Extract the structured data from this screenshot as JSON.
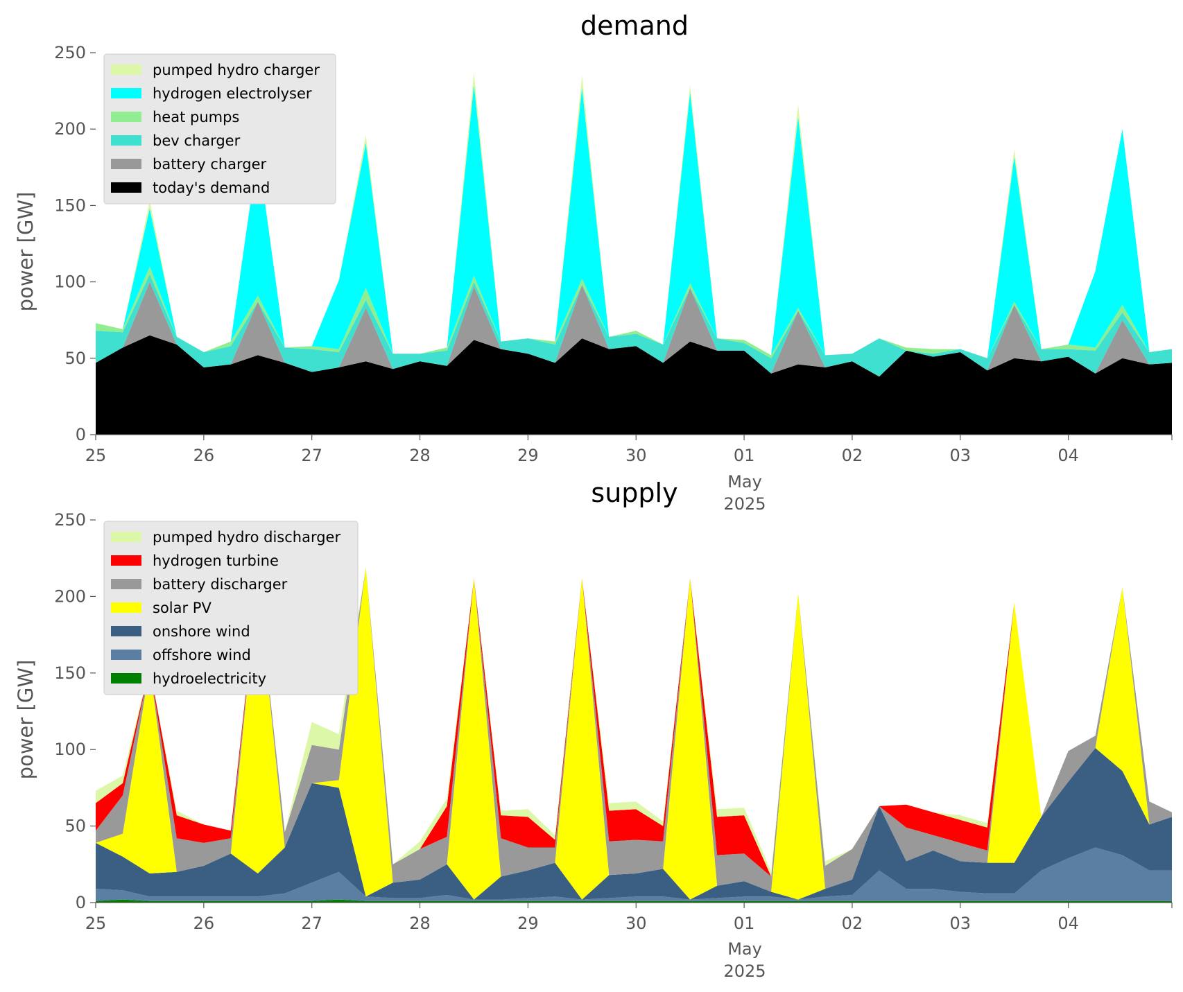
{
  "chart_data": [
    {
      "type": "area",
      "title": "demand",
      "ylabel": "power [GW]",
      "xlabel": "",
      "ylim": [
        0,
        250
      ],
      "yticks": [
        0,
        50,
        100,
        150,
        200,
        250
      ],
      "xlim": [
        "2025-04-25",
        "2025-05-04 23:00"
      ],
      "xtick_labels": [
        "25",
        "26",
        "27",
        "28",
        "29",
        "30",
        "01",
        "02",
        "03",
        "04"
      ],
      "xaxis_note": [
        "May",
        "2025"
      ],
      "legend_position": "top-left",
      "stacked": true,
      "resolution": "hourly samples, interpolated between listed times",
      "x": [
        "04-25 00:00",
        "04-25 06:00",
        "04-25 12:00",
        "04-25 18:00",
        "04-26 00:00",
        "04-26 06:00",
        "04-26 12:00",
        "04-26 18:00",
        "04-27 00:00",
        "04-27 06:00",
        "04-27 12:00",
        "04-27 18:00",
        "04-28 00:00",
        "04-28 06:00",
        "04-28 12:00",
        "04-28 18:00",
        "04-29 00:00",
        "04-29 06:00",
        "04-29 12:00",
        "04-29 18:00",
        "04-30 00:00",
        "04-30 06:00",
        "04-30 12:00",
        "04-30 18:00",
        "05-01 00:00",
        "05-01 06:00",
        "05-01 12:00",
        "05-01 18:00",
        "05-02 00:00",
        "05-02 06:00",
        "05-02 12:00",
        "05-02 18:00",
        "05-03 00:00",
        "05-03 06:00",
        "05-03 12:00",
        "05-03 18:00",
        "05-04 00:00",
        "05-04 06:00",
        "05-04 12:00",
        "05-04 18:00",
        "05-04 23:00"
      ],
      "series": [
        {
          "name": "today's demand",
          "color": "#000000",
          "values": [
            47,
            57,
            65,
            59,
            44,
            46,
            52,
            47,
            41,
            44,
            48,
            43,
            48,
            45,
            62,
            56,
            53,
            47,
            63,
            56,
            58,
            47,
            61,
            55,
            55,
            40,
            46,
            44,
            48,
            38,
            55,
            51,
            54,
            42,
            50,
            48,
            51,
            40,
            50,
            46,
            47
          ]
        },
        {
          "name": "battery charger",
          "color": "#999999",
          "values": [
            0,
            0,
            35,
            0,
            0,
            0,
            35,
            0,
            0,
            0,
            35,
            0,
            0,
            0,
            35,
            0,
            0,
            0,
            35,
            0,
            0,
            0,
            35,
            0,
            0,
            0,
            35,
            0,
            0,
            0,
            0,
            0,
            0,
            0,
            35,
            0,
            0,
            0,
            25,
            0,
            0
          ]
        },
        {
          "name": "bev charger",
          "color": "#40e0d0",
          "values": [
            21,
            10,
            5,
            5,
            10,
            12,
            0,
            10,
            15,
            10,
            5,
            10,
            5,
            10,
            3,
            5,
            10,
            12,
            0,
            8,
            8,
            12,
            0,
            8,
            5,
            10,
            0,
            8,
            5,
            25,
            0,
            2,
            2,
            8,
            0,
            8,
            5,
            15,
            5,
            8,
            9
          ]
        },
        {
          "name": "heat pumps",
          "color": "#90ee90",
          "values": [
            5,
            2,
            5,
            0,
            0,
            3,
            4,
            0,
            2,
            2,
            8,
            0,
            0,
            2,
            4,
            0,
            0,
            2,
            4,
            0,
            2,
            0,
            3,
            0,
            2,
            2,
            2,
            0,
            0,
            0,
            2,
            3,
            0,
            0,
            2,
            0,
            3,
            2,
            5,
            0,
            0
          ]
        },
        {
          "name": "hydrogen electrolyser",
          "color": "#00ffff",
          "values": [
            0,
            0,
            38,
            0,
            0,
            0,
            95,
            0,
            0,
            45,
            95,
            0,
            0,
            0,
            125,
            0,
            0,
            0,
            125,
            0,
            0,
            0,
            125,
            0,
            0,
            0,
            125,
            0,
            0,
            0,
            0,
            0,
            0,
            0,
            95,
            0,
            0,
            50,
            115,
            0,
            0
          ]
        },
        {
          "name": "pumped hydro charger",
          "color": "#ddf7a8",
          "values": [
            0,
            0,
            5,
            0,
            0,
            0,
            0,
            0,
            0,
            0,
            5,
            0,
            0,
            0,
            8,
            0,
            0,
            0,
            8,
            0,
            0,
            0,
            5,
            0,
            0,
            0,
            8,
            0,
            0,
            0,
            0,
            0,
            0,
            0,
            5,
            0,
            0,
            0,
            0,
            0,
            0
          ]
        }
      ]
    },
    {
      "type": "area",
      "title": "supply",
      "ylabel": "power [GW]",
      "xlabel": "",
      "ylim": [
        0,
        250
      ],
      "yticks": [
        0,
        50,
        100,
        150,
        200,
        250
      ],
      "xlim": [
        "2025-04-25",
        "2025-05-04 23:00"
      ],
      "xtick_labels": [
        "25",
        "26",
        "27",
        "28",
        "29",
        "30",
        "01",
        "02",
        "03",
        "04"
      ],
      "xaxis_note": [
        "May",
        "2025"
      ],
      "legend_position": "top-left",
      "stacked": true,
      "resolution": "hourly samples, interpolated between listed times",
      "x": [
        "04-25 00:00",
        "04-25 06:00",
        "04-25 12:00",
        "04-25 18:00",
        "04-26 00:00",
        "04-26 06:00",
        "04-26 12:00",
        "04-26 18:00",
        "04-27 00:00",
        "04-27 06:00",
        "04-27 12:00",
        "04-27 18:00",
        "04-28 00:00",
        "04-28 06:00",
        "04-28 12:00",
        "04-28 18:00",
        "04-29 00:00",
        "04-29 06:00",
        "04-29 12:00",
        "04-29 18:00",
        "04-30 00:00",
        "04-30 06:00",
        "04-30 12:00",
        "04-30 18:00",
        "05-01 00:00",
        "05-01 06:00",
        "05-01 12:00",
        "05-01 18:00",
        "05-02 00:00",
        "05-02 06:00",
        "05-02 12:00",
        "05-02 18:00",
        "05-03 00:00",
        "05-03 06:00",
        "05-03 12:00",
        "05-03 18:00",
        "05-04 00:00",
        "05-04 06:00",
        "05-04 12:00",
        "05-04 18:00",
        "05-04 23:00"
      ],
      "series": [
        {
          "name": "hydroelectricity",
          "color": "#008000",
          "values": [
            1,
            2,
            1,
            1,
            1,
            1,
            1,
            1,
            1,
            2,
            1,
            1,
            1,
            1,
            1,
            1,
            1,
            1,
            1,
            1,
            1,
            1,
            1,
            1,
            1,
            1,
            1,
            1,
            1,
            1,
            1,
            1,
            1,
            1,
            1,
            1,
            1,
            1,
            1,
            1,
            1
          ]
        },
        {
          "name": "offshore wind",
          "color": "#5b7fa3",
          "values": [
            8,
            6,
            3,
            3,
            3,
            3,
            3,
            5,
            12,
            18,
            3,
            2,
            2,
            4,
            1,
            1,
            2,
            3,
            1,
            2,
            3,
            3,
            1,
            2,
            3,
            3,
            1,
            3,
            4,
            20,
            8,
            8,
            6,
            5,
            5,
            20,
            28,
            35,
            30,
            20,
            20
          ]
        },
        {
          "name": "onshore wind",
          "color": "#3a5f82",
          "values": [
            30,
            22,
            15,
            16,
            20,
            28,
            15,
            30,
            65,
            55,
            0,
            10,
            12,
            20,
            0,
            15,
            18,
            22,
            0,
            15,
            15,
            18,
            0,
            8,
            10,
            3,
            0,
            5,
            10,
            42,
            18,
            25,
            20,
            20,
            20,
            35,
            50,
            65,
            55,
            30,
            35
          ]
        },
        {
          "name": "solar PV",
          "color": "#ffff00",
          "values": [
            0,
            15,
            135,
            0,
            0,
            0,
            190,
            0,
            0,
            5,
            215,
            0,
            0,
            0,
            210,
            0,
            0,
            0,
            210,
            0,
            0,
            0,
            210,
            0,
            0,
            0,
            200,
            0,
            0,
            0,
            0,
            0,
            0,
            0,
            170,
            0,
            0,
            0,
            120,
            0,
            0
          ]
        },
        {
          "name": "battery discharger",
          "color": "#999999",
          "values": [
            8,
            25,
            0,
            22,
            15,
            10,
            0,
            10,
            25,
            20,
            0,
            12,
            20,
            18,
            0,
            25,
            15,
            10,
            0,
            22,
            22,
            18,
            0,
            20,
            18,
            10,
            0,
            15,
            20,
            0,
            22,
            10,
            12,
            8,
            0,
            0,
            20,
            8,
            0,
            15,
            3
          ]
        },
        {
          "name": "hydrogen turbine",
          "color": "#ff0000",
          "values": [
            18,
            8,
            0,
            15,
            12,
            5,
            0,
            0,
            0,
            0,
            0,
            0,
            0,
            20,
            0,
            15,
            20,
            5,
            0,
            20,
            20,
            10,
            0,
            25,
            25,
            0,
            0,
            0,
            0,
            0,
            15,
            15,
            15,
            15,
            0,
            0,
            0,
            0,
            0,
            0,
            0
          ]
        },
        {
          "name": "pumped hydro discharger",
          "color": "#ddf7a8",
          "values": [
            8,
            5,
            0,
            3,
            0,
            0,
            0,
            0,
            15,
            10,
            0,
            0,
            5,
            5,
            0,
            3,
            5,
            3,
            0,
            5,
            5,
            3,
            0,
            5,
            5,
            3,
            0,
            3,
            0,
            0,
            0,
            0,
            3,
            3,
            0,
            0,
            0,
            0,
            0,
            0,
            0
          ]
        }
      ]
    }
  ]
}
